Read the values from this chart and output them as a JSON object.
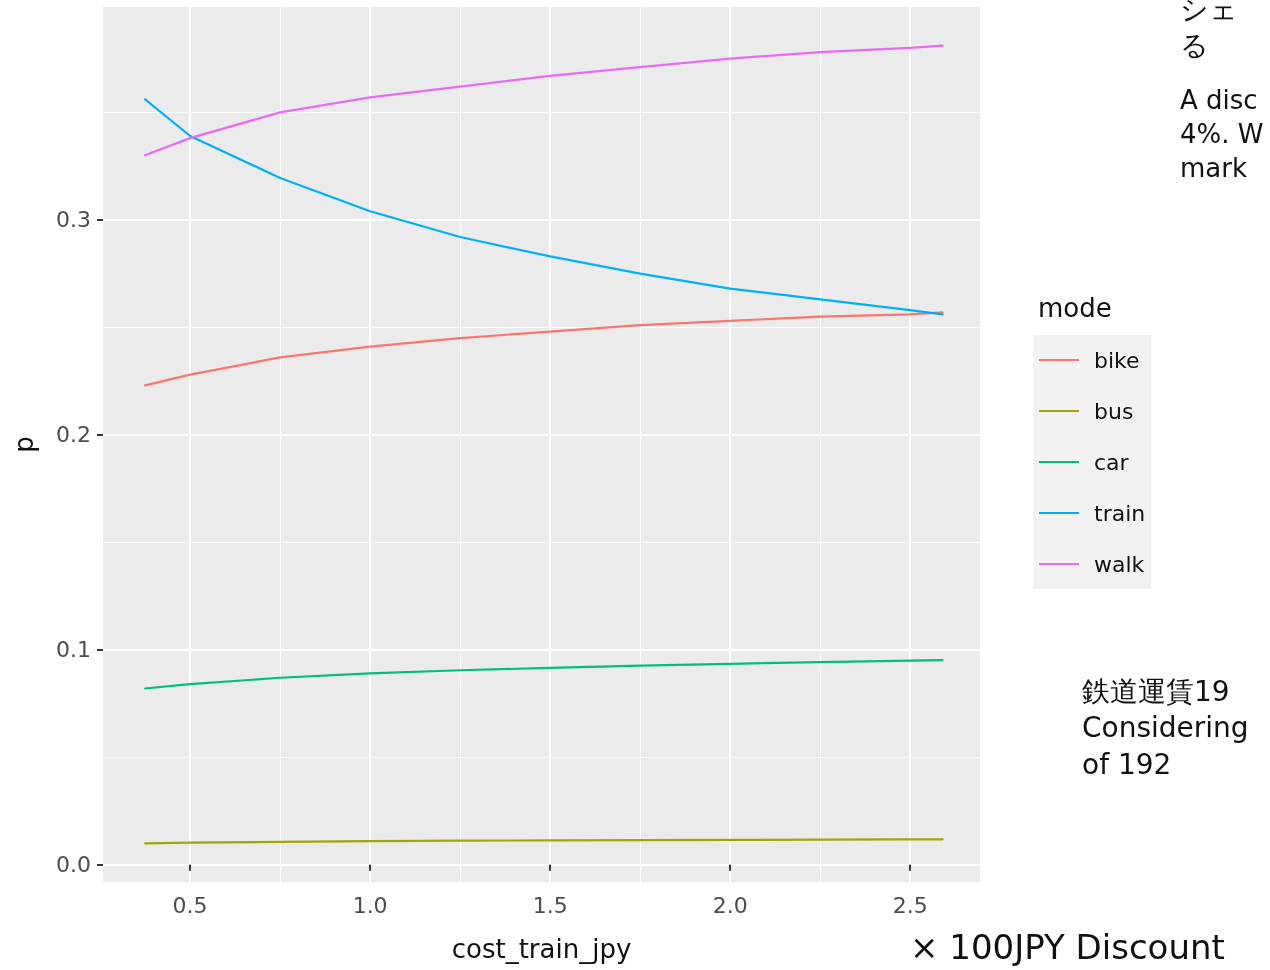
{
  "chart_data": {
    "type": "line",
    "xlabel": "cost_train_jpy",
    "ylabel": "p",
    "legend_title": "mode",
    "legend": "right",
    "grid": true,
    "marker": "none",
    "line_style": "solid",
    "x": [
      0.375,
      0.5,
      0.75,
      1.0,
      1.25,
      1.5,
      1.75,
      2.0,
      2.25,
      2.5,
      2.59
    ],
    "xlim": [
      0.258,
      2.694
    ],
    "xticks": [
      {
        "value": 0.5,
        "label": "0.5"
      },
      {
        "value": 1.0,
        "label": "1.0"
      },
      {
        "value": 1.5,
        "label": "1.5"
      },
      {
        "value": 2.0,
        "label": "2.0"
      },
      {
        "value": 2.5,
        "label": "2.5"
      }
    ],
    "ylim": [
      -0.008,
      0.399
    ],
    "yticks": [
      {
        "value": 0,
        "label": "0.0"
      },
      {
        "value": 0.1,
        "label": "0.1"
      },
      {
        "value": 0.2,
        "label": "0.2"
      },
      {
        "value": 0.3,
        "label": "0.3"
      }
    ],
    "series": [
      {
        "name": "bike",
        "color": "#f8766d",
        "values": [
          0.223,
          0.228,
          0.236,
          0.241,
          0.245,
          0.248,
          0.251,
          0.253,
          0.255,
          0.256,
          0.257
        ]
      },
      {
        "name": "bus",
        "color": "#a3a500",
        "values": [
          0.01,
          0.0103,
          0.0107,
          0.011,
          0.0112,
          0.0114,
          0.0115,
          0.0116,
          0.0117,
          0.0118,
          0.0118
        ]
      },
      {
        "name": "car",
        "color": "#00bf7d",
        "values": [
          0.082,
          0.084,
          0.087,
          0.089,
          0.0905,
          0.0916,
          0.0926,
          0.0935,
          0.0943,
          0.095,
          0.0952
        ]
      },
      {
        "name": "train",
        "color": "#00b0f6",
        "values": [
          0.356,
          0.339,
          0.3195,
          0.304,
          0.292,
          0.283,
          0.275,
          0.268,
          0.263,
          0.258,
          0.256
        ]
      },
      {
        "name": "walk",
        "color": "#e76bf3",
        "values": [
          0.33,
          0.338,
          0.35,
          0.357,
          0.362,
          0.367,
          0.371,
          0.375,
          0.378,
          0.38,
          0.381
        ]
      }
    ],
    "annotations": [
      "シェる",
      "A disc\n4%. W\nmark",
      "鉄道運賃19\nConsidering\nof 192",
      "× 100JPY Discount"
    ]
  }
}
